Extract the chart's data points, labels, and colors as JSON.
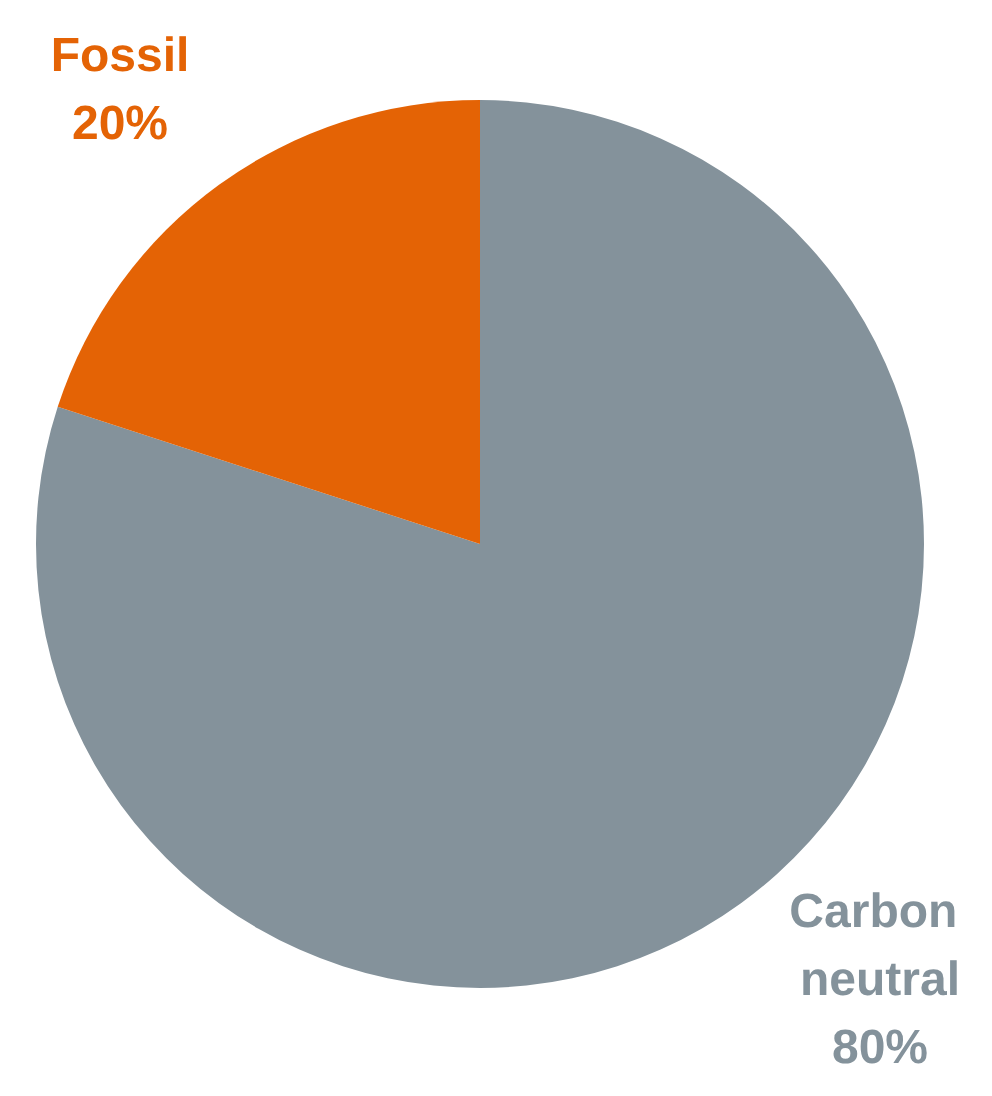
{
  "chart_data": {
    "type": "pie",
    "categories": [
      "Carbon neutral",
      "Fossil"
    ],
    "values": [
      80,
      20
    ],
    "colors": [
      "#84929b",
      "#e46305"
    ],
    "value_labels": [
      "80%",
      "20%"
    ],
    "legend": false
  }
}
